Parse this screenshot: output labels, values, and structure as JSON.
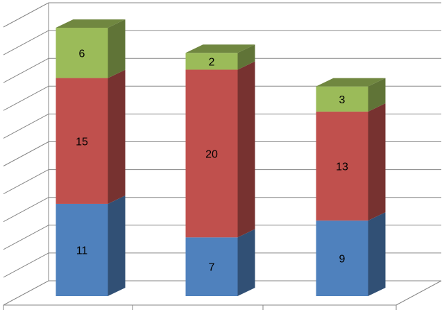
{
  "chart_data": {
    "type": "bar",
    "stacked": true,
    "three_d": true,
    "categories": [
      "",
      "",
      ""
    ],
    "series": [
      {
        "values": [
          11,
          7,
          9
        ],
        "color": "#4F81BD"
      },
      {
        "values": [
          15,
          20,
          13
        ],
        "color": "#C0504D"
      },
      {
        "values": [
          6,
          2,
          3
        ],
        "color": "#9BBB59"
      }
    ],
    "ylim": [
      0,
      32
    ],
    "ytick_step": 3.2,
    "grid": true,
    "legend": "none",
    "title": "",
    "xlabel": "",
    "ylabel": ""
  }
}
